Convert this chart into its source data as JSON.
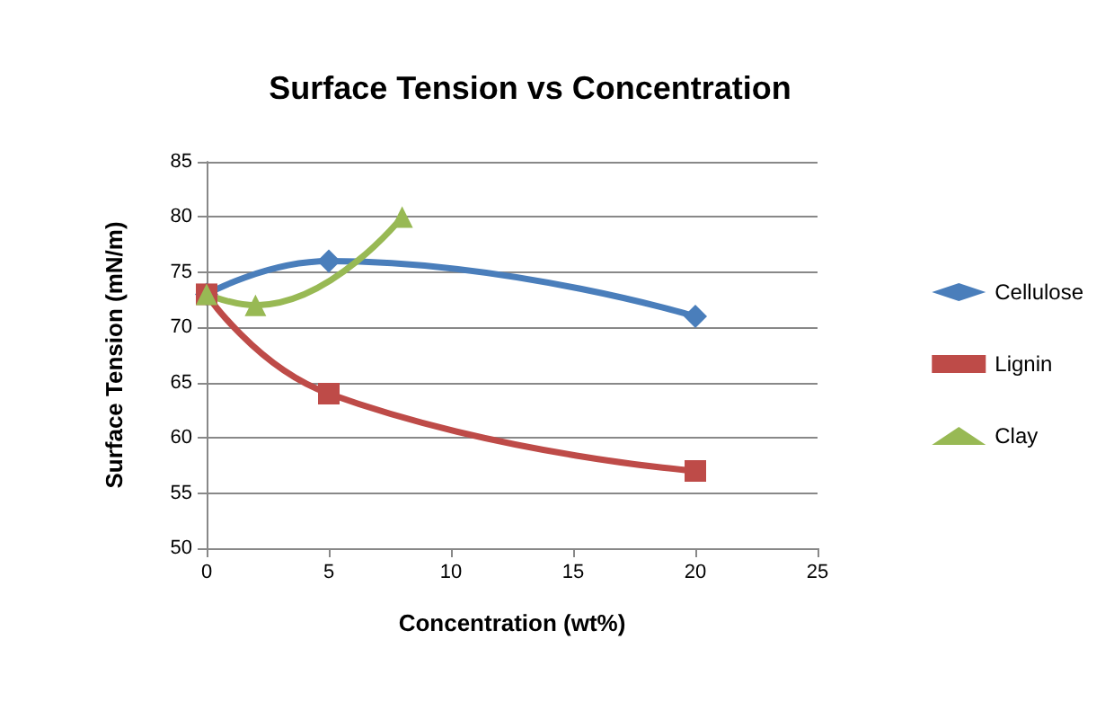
{
  "chart_data": {
    "type": "line",
    "title": "Surface Tension vs Concentration",
    "xlabel": "Concentration (wt%)",
    "ylabel": "Surface Tension (mN/m)",
    "series": [
      {
        "name": "Cellulose",
        "color": "#4a7ebb",
        "marker": "diamond",
        "x": [
          0,
          5,
          20
        ],
        "values": [
          73,
          76,
          71
        ]
      },
      {
        "name": "Lignin",
        "color": "#be4b48",
        "marker": "square",
        "x": [
          0,
          5,
          20
        ],
        "values": [
          73,
          64,
          57
        ]
      },
      {
        "name": "Clay",
        "color": "#98b954",
        "marker": "triangle",
        "x": [
          0,
          2,
          8
        ],
        "values": [
          73,
          72,
          80
        ]
      }
    ],
    "xlim": [
      0,
      25
    ],
    "xticks": [
      0,
      5,
      10,
      15,
      20,
      25
    ],
    "ylim": [
      50,
      85
    ],
    "yticks": [
      50,
      55,
      60,
      65,
      70,
      75,
      80,
      85
    ],
    "grid": "y",
    "legend": "right"
  }
}
